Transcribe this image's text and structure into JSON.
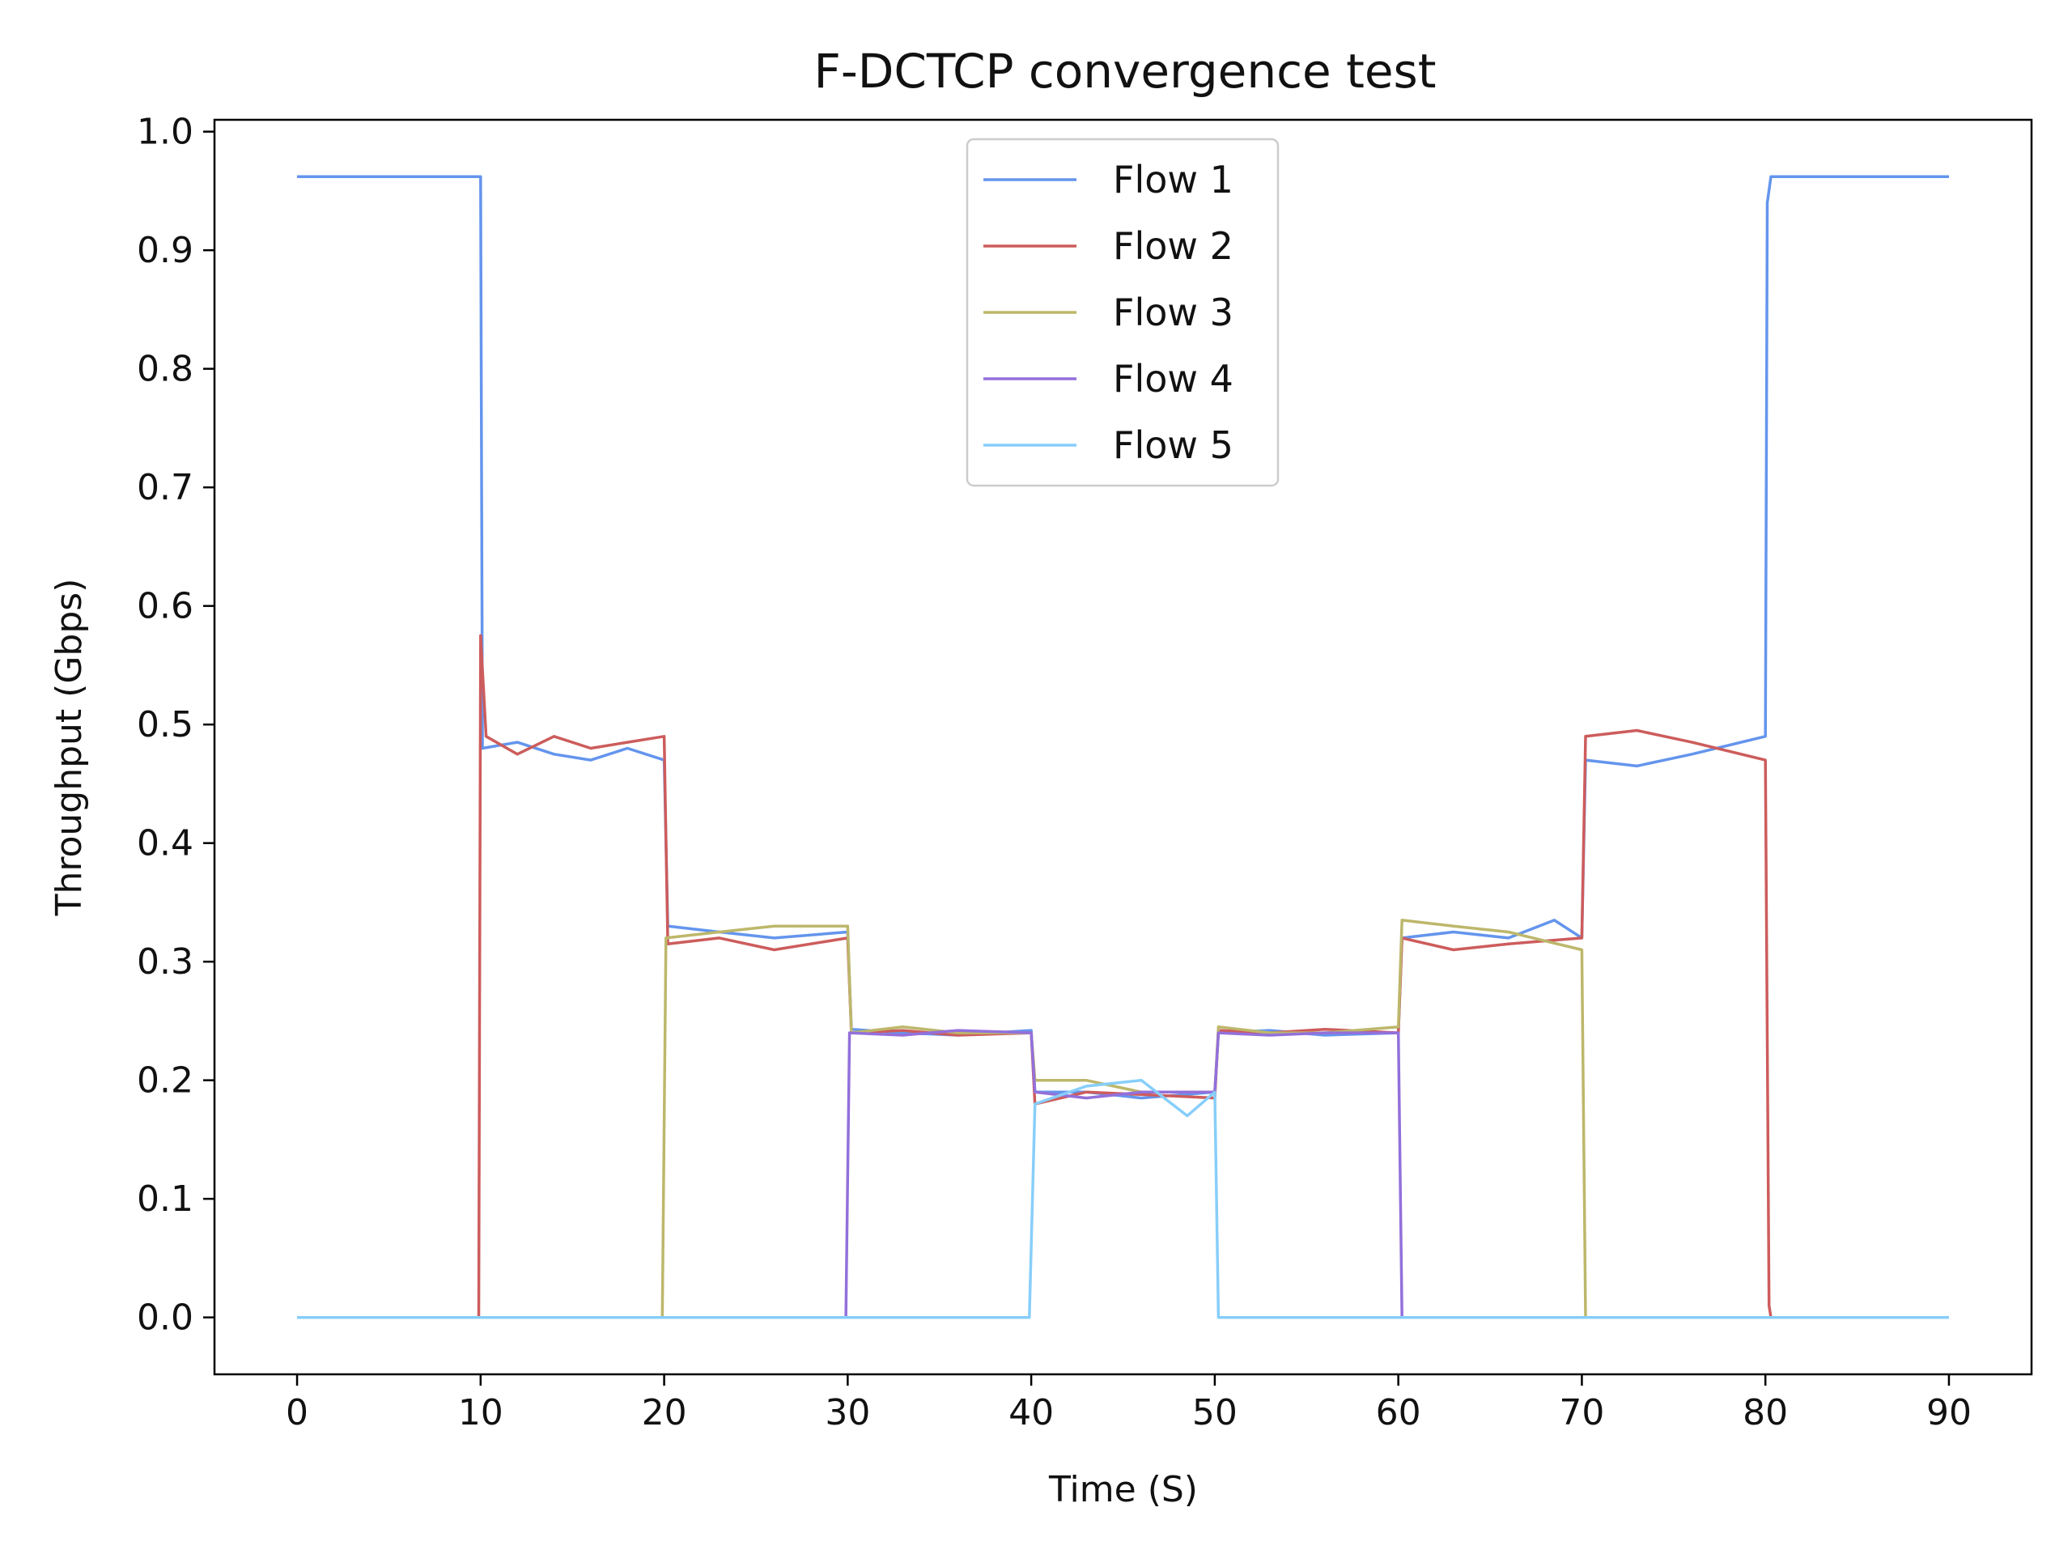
{
  "chart_data": {
    "type": "line",
    "title": "F-DCTCP convergence test",
    "xlabel": "Time (S)",
    "ylabel": "Throughput (Gbps)",
    "xlim": [
      -4.5,
      94.5
    ],
    "ylim": [
      -0.048,
      1.01
    ],
    "xticks": [
      0,
      10,
      20,
      30,
      40,
      50,
      60,
      70,
      80,
      90
    ],
    "yticks": [
      0.0,
      0.1,
      0.2,
      0.3,
      0.4,
      0.5,
      0.6,
      0.7,
      0.8,
      0.9,
      1.0
    ],
    "xtick_labels": [
      "0",
      "10",
      "20",
      "30",
      "40",
      "50",
      "60",
      "70",
      "80",
      "90"
    ],
    "ytick_labels": [
      "0.0",
      "0.1",
      "0.2",
      "0.3",
      "0.4",
      "0.5",
      "0.6",
      "0.7",
      "0.8",
      "0.9",
      "1.0"
    ],
    "grid": false,
    "legend_position": "top-center",
    "series": [
      {
        "name": "Flow 1",
        "color": "#6495ED",
        "points": [
          [
            0,
            0.962
          ],
          [
            10,
            0.962
          ],
          [
            10.1,
            0.48
          ],
          [
            12,
            0.485
          ],
          [
            14,
            0.475
          ],
          [
            16,
            0.47
          ],
          [
            18,
            0.48
          ],
          [
            20,
            0.47
          ],
          [
            20.2,
            0.33
          ],
          [
            23,
            0.325
          ],
          [
            26,
            0.32
          ],
          [
            30,
            0.325
          ],
          [
            30.2,
            0.243
          ],
          [
            33,
            0.24
          ],
          [
            36,
            0.238
          ],
          [
            40,
            0.242
          ],
          [
            40.2,
            0.19
          ],
          [
            43,
            0.19
          ],
          [
            46,
            0.185
          ],
          [
            50,
            0.19
          ],
          [
            50.2,
            0.24
          ],
          [
            53,
            0.242
          ],
          [
            56,
            0.238
          ],
          [
            60,
            0.24
          ],
          [
            60.2,
            0.32
          ],
          [
            63,
            0.325
          ],
          [
            66,
            0.32
          ],
          [
            68.5,
            0.335
          ],
          [
            70,
            0.32
          ],
          [
            70.2,
            0.47
          ],
          [
            73,
            0.465
          ],
          [
            76,
            0.475
          ],
          [
            80,
            0.49
          ],
          [
            80.1,
            0.94
          ],
          [
            80.3,
            0.962
          ],
          [
            90,
            0.962
          ]
        ]
      },
      {
        "name": "Flow 2",
        "color": "#CD5C5C",
        "points": [
          [
            0,
            0
          ],
          [
            9.9,
            0
          ],
          [
            10,
            0.575
          ],
          [
            10.3,
            0.49
          ],
          [
            12,
            0.475
          ],
          [
            14,
            0.49
          ],
          [
            16,
            0.48
          ],
          [
            18,
            0.485
          ],
          [
            20,
            0.49
          ],
          [
            20.2,
            0.315
          ],
          [
            23,
            0.32
          ],
          [
            26,
            0.31
          ],
          [
            30,
            0.32
          ],
          [
            30.2,
            0.24
          ],
          [
            33,
            0.242
          ],
          [
            36,
            0.238
          ],
          [
            40,
            0.24
          ],
          [
            40.2,
            0.18
          ],
          [
            43,
            0.19
          ],
          [
            46,
            0.188
          ],
          [
            50,
            0.185
          ],
          [
            50.2,
            0.242
          ],
          [
            53,
            0.24
          ],
          [
            56,
            0.243
          ],
          [
            60,
            0.24
          ],
          [
            60.2,
            0.32
          ],
          [
            63,
            0.31
          ],
          [
            66,
            0.315
          ],
          [
            70,
            0.32
          ],
          [
            70.2,
            0.49
          ],
          [
            73,
            0.495
          ],
          [
            76,
            0.485
          ],
          [
            80,
            0.47
          ],
          [
            80.2,
            0.01
          ],
          [
            80.3,
            0
          ],
          [
            90,
            0
          ]
        ]
      },
      {
        "name": "Flow 3",
        "color": "#BDB76B",
        "points": [
          [
            0,
            0
          ],
          [
            19.9,
            0
          ],
          [
            20.1,
            0.32
          ],
          [
            23,
            0.325
          ],
          [
            26,
            0.33
          ],
          [
            30,
            0.33
          ],
          [
            30.2,
            0.24
          ],
          [
            33,
            0.245
          ],
          [
            36,
            0.24
          ],
          [
            40,
            0.24
          ],
          [
            40.2,
            0.2
          ],
          [
            43,
            0.2
          ],
          [
            46,
            0.19
          ],
          [
            50,
            0.19
          ],
          [
            50.2,
            0.245
          ],
          [
            53,
            0.24
          ],
          [
            56,
            0.24
          ],
          [
            60,
            0.245
          ],
          [
            60.2,
            0.335
          ],
          [
            63,
            0.33
          ],
          [
            66,
            0.325
          ],
          [
            70,
            0.31
          ],
          [
            70.2,
            0
          ],
          [
            90,
            0
          ]
        ]
      },
      {
        "name": "Flow 4",
        "color": "#9370DB",
        "points": [
          [
            0,
            0
          ],
          [
            29.9,
            0
          ],
          [
            30.1,
            0.24
          ],
          [
            33,
            0.238
          ],
          [
            36,
            0.242
          ],
          [
            40,
            0.24
          ],
          [
            40.2,
            0.19
          ],
          [
            43,
            0.185
          ],
          [
            46,
            0.19
          ],
          [
            50,
            0.19
          ],
          [
            50.2,
            0.24
          ],
          [
            53,
            0.238
          ],
          [
            56,
            0.24
          ],
          [
            60,
            0.24
          ],
          [
            60.2,
            0
          ],
          [
            90,
            0
          ]
        ]
      },
      {
        "name": "Flow 5",
        "color": "#87CEFA",
        "points": [
          [
            0,
            0
          ],
          [
            39.9,
            0
          ],
          [
            40.2,
            0.18
          ],
          [
            43,
            0.195
          ],
          [
            46,
            0.2
          ],
          [
            48.5,
            0.17
          ],
          [
            50,
            0.19
          ],
          [
            50.2,
            0
          ],
          [
            90,
            0
          ]
        ]
      }
    ]
  }
}
